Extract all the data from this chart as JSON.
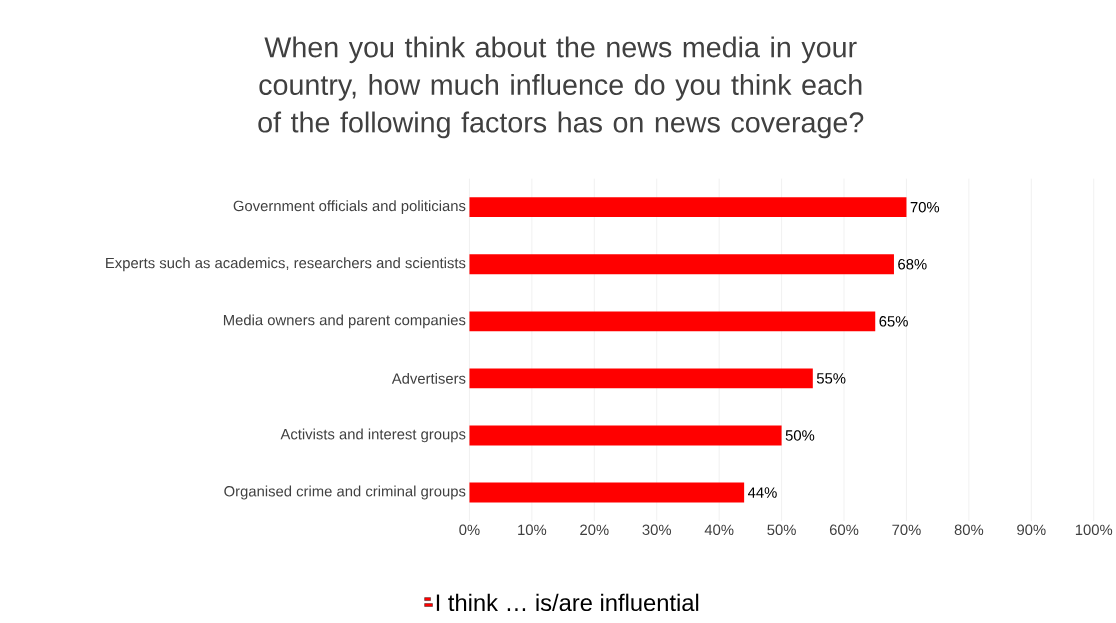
{
  "chart_data": {
    "type": "bar",
    "orientation": "horizontal",
    "title": "When you think about the news media in your country, how much influence do you think each of the following factors has on news coverage?",
    "categories": [
      "Government officials and politicians",
      "Experts such as academics, researchers and scientists",
      "Media owners and parent companies",
      "Advertisers",
      "Activists and interest groups",
      "Organised crime and criminal groups"
    ],
    "series": [
      {
        "name": "I think … is/are influential",
        "color": "#ff0000",
        "values": [
          70,
          68,
          65,
          55,
          50,
          44
        ]
      }
    ],
    "value_labels": [
      "70%",
      "68%",
      "65%",
      "55%",
      "50%",
      "44%"
    ],
    "xlim": [
      0,
      100
    ],
    "xticks": [
      {
        "value": 0,
        "label": "0%"
      },
      {
        "value": 10,
        "label": "10%"
      },
      {
        "value": 20,
        "label": "20%"
      },
      {
        "value": 30,
        "label": "30%"
      },
      {
        "value": 40,
        "label": "40%"
      },
      {
        "value": 50,
        "label": "50%"
      },
      {
        "value": 60,
        "label": "60%"
      },
      {
        "value": 70,
        "label": "70%"
      },
      {
        "value": 80,
        "label": "80%"
      },
      {
        "value": 90,
        "label": "90%"
      },
      {
        "value": 100,
        "label": "100%"
      }
    ],
    "grid": "x",
    "legend": "bottom"
  }
}
